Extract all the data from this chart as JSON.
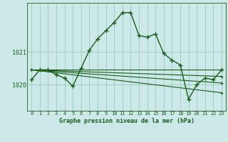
{
  "title": "Graphe pression niveau de la mer (hPa)",
  "bg_color": "#cce8e8",
  "grid_color": "#99ccbb",
  "line_color": "#1a5c1a",
  "xlim": [
    -0.5,
    23.5
  ],
  "ylim": [
    1019.2,
    1022.5
  ],
  "yticks": [
    1020,
    1021
  ],
  "xticks": [
    0,
    1,
    2,
    3,
    4,
    5,
    6,
    7,
    8,
    9,
    10,
    11,
    12,
    13,
    14,
    15,
    16,
    17,
    18,
    19,
    20,
    21,
    22,
    23
  ],
  "main_series": {
    "x": [
      0,
      1,
      2,
      3,
      4,
      5,
      6,
      7,
      8,
      9,
      10,
      11,
      12,
      13,
      14,
      15,
      16,
      17,
      18,
      19,
      20,
      21,
      22,
      23
    ],
    "y": [
      1020.15,
      1020.45,
      1020.45,
      1020.3,
      1020.2,
      1019.95,
      1020.5,
      1021.05,
      1021.4,
      1021.65,
      1021.9,
      1022.2,
      1022.2,
      1021.5,
      1021.45,
      1021.55,
      1020.95,
      1020.75,
      1020.6,
      1019.55,
      1020.0,
      1020.2,
      1020.15,
      1020.45
    ]
  },
  "diagonal_series": [
    {
      "x": [
        0,
        23
      ],
      "y": [
        1020.45,
        1020.45
      ]
    },
    {
      "x": [
        0,
        23
      ],
      "y": [
        1020.45,
        1020.25
      ]
    },
    {
      "x": [
        0,
        23
      ],
      "y": [
        1020.45,
        1020.05
      ]
    },
    {
      "x": [
        0,
        23
      ],
      "y": [
        1020.45,
        1019.75
      ]
    }
  ]
}
